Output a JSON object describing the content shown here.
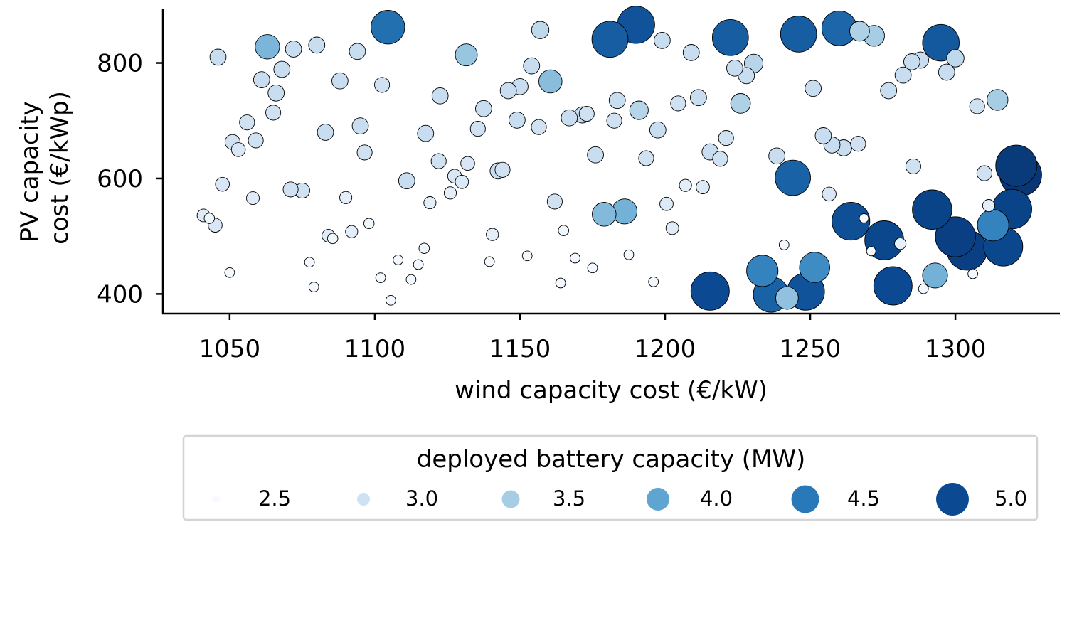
{
  "chart_data": {
    "type": "scatter",
    "title": "",
    "xlabel": "wind capacity cost (€/kW)",
    "ylabel_lines": [
      "PV capacity",
      "cost (€/kWp)"
    ],
    "xlim": [
      1027,
      1336
    ],
    "ylim": [
      366,
      893
    ],
    "xticks": [
      1050,
      1100,
      1150,
      1200,
      1250,
      1300
    ],
    "yticks": [
      400,
      600,
      800
    ],
    "grid": false,
    "colormap": "Blues",
    "size_and_color_encode": "deployed battery capacity (MW)",
    "legend": {
      "placement": "below",
      "title": "deployed battery capacity (MW)",
      "entries": [
        {
          "label": "2.5",
          "value": 2.5,
          "color": "#f7fbff"
        },
        {
          "label": "3.0",
          "value": 3.0,
          "color": "#d0e1f2"
        },
        {
          "label": "3.5",
          "value": 3.5,
          "color": "#a6cde3"
        },
        {
          "label": "4.0",
          "value": 4.0,
          "color": "#5fa5d2"
        },
        {
          "label": "4.5",
          "value": 4.5,
          "color": "#2979b9"
        },
        {
          "label": "5.0",
          "value": 5.0,
          "color": "#0b4a92"
        }
      ]
    },
    "points": [
      [
        1104.5,
        862,
        4.6
      ],
      [
        1190,
        866,
        4.9
      ],
      [
        1181,
        841,
        4.8
      ],
      [
        1222.5,
        844,
        4.8
      ],
      [
        1246,
        850,
        4.8
      ],
      [
        1260,
        860,
        4.7
      ],
      [
        1295,
        835,
        4.85
      ],
      [
        1267,
        855,
        3.4
      ],
      [
        1272,
        847,
        3.5
      ],
      [
        1063,
        828,
        3.8
      ],
      [
        1131.5,
        814,
        3.6
      ],
      [
        1157,
        857,
        3.2
      ],
      [
        1046,
        810,
        3.1
      ],
      [
        1072,
        824,
        3.1
      ],
      [
        1080,
        831,
        3.1
      ],
      [
        1094,
        820,
        3.1
      ],
      [
        1061,
        771,
        3.1
      ],
      [
        1068,
        789,
        3.1
      ],
      [
        1066,
        748,
        3.1
      ],
      [
        1088,
        769,
        3.1
      ],
      [
        1102.5,
        762,
        3.0
      ],
      [
        1154,
        795,
        3.1
      ],
      [
        1160.5,
        768,
        3.7
      ],
      [
        1199,
        839,
        3.1
      ],
      [
        1209,
        818,
        3.1
      ],
      [
        1230.5,
        799,
        3.3
      ],
      [
        1224,
        791,
        3.1
      ],
      [
        1228,
        778,
        3.1
      ],
      [
        1251,
        756,
        3.1
      ],
      [
        1285,
        802,
        3.1
      ],
      [
        1288,
        805,
        3.1
      ],
      [
        1300,
        808,
        3.2
      ],
      [
        1297,
        784,
        3.1
      ],
      [
        1282,
        779,
        3.1
      ],
      [
        1277,
        752,
        3.1
      ],
      [
        1314.5,
        736,
        3.5
      ],
      [
        1307.5,
        725,
        3.0
      ],
      [
        1122.5,
        743,
        3.1
      ],
      [
        1146,
        752,
        3.1
      ],
      [
        1150,
        759,
        3.1
      ],
      [
        1137.5,
        721,
        3.1
      ],
      [
        1149,
        701,
        3.1
      ],
      [
        1183.5,
        735,
        3.1
      ],
      [
        1191,
        718,
        3.3
      ],
      [
        1204.5,
        730,
        3.0
      ],
      [
        1211.5,
        740,
        3.1
      ],
      [
        1226,
        730,
        3.4
      ],
      [
        1065,
        714,
        3.0
      ],
      [
        1056,
        697,
        3.0
      ],
      [
        1083,
        680,
        3.1
      ],
      [
        1095,
        691,
        3.1
      ],
      [
        1117.5,
        678,
        3.1
      ],
      [
        1135.5,
        686,
        3.0
      ],
      [
        1156.5,
        689,
        3.0
      ],
      [
        1167,
        705,
        3.1
      ],
      [
        1171.5,
        710,
        3.1
      ],
      [
        1173,
        712,
        3.0
      ],
      [
        1182.5,
        700,
        3.0
      ],
      [
        1197.5,
        684,
        3.1
      ],
      [
        1221,
        670,
        3.0
      ],
      [
        1051,
        663,
        3.0
      ],
      [
        1053,
        650,
        2.9
      ],
      [
        1059,
        666,
        3.0
      ],
      [
        1096.5,
        645,
        3.0
      ],
      [
        1122,
        630,
        3.0
      ],
      [
        1132,
        626,
        2.9
      ],
      [
        1127.5,
        604,
        2.9
      ],
      [
        1130,
        594,
        2.85
      ],
      [
        1142.5,
        613,
        3.1
      ],
      [
        1144,
        615,
        3.0
      ],
      [
        1176,
        641,
        3.1
      ],
      [
        1193.5,
        635,
        3.0
      ],
      [
        1215.5,
        646,
        3.1
      ],
      [
        1219,
        634,
        3.0
      ],
      [
        1238.5,
        639,
        3.1
      ],
      [
        1254.5,
        674,
        3.1
      ],
      [
        1257.5,
        658,
        3.1
      ],
      [
        1261.5,
        653,
        3.1
      ],
      [
        1266.5,
        660,
        3.0
      ],
      [
        1285.5,
        621,
        3.0
      ],
      [
        1310,
        609,
        3.0
      ],
      [
        1047.5,
        590,
        2.9
      ],
      [
        1058,
        566,
        2.8
      ],
      [
        1071,
        581,
        3.0
      ],
      [
        1075,
        579,
        3.0
      ],
      [
        1111,
        596,
        3.1
      ],
      [
        1090,
        567,
        2.75
      ],
      [
        1119,
        558,
        2.75
      ],
      [
        1126,
        575,
        2.75
      ],
      [
        1162,
        560,
        3.0
      ],
      [
        1200.5,
        556,
        2.85
      ],
      [
        1207,
        588,
        2.75
      ],
      [
        1213,
        585,
        2.85
      ],
      [
        1244,
        601,
        4.75
      ],
      [
        1256.5,
        573,
        2.9
      ],
      [
        1041,
        536,
        2.8
      ],
      [
        1043,
        531,
        2.6
      ],
      [
        1045,
        519,
        2.9
      ],
      [
        1084,
        501,
        2.8
      ],
      [
        1085.5,
        496,
        2.6
      ],
      [
        1092,
        508,
        2.75
      ],
      [
        1098,
        522,
        2.6
      ],
      [
        1140.5,
        503,
        2.75
      ],
      [
        1165,
        510,
        2.6
      ],
      [
        1179,
        538,
        3.75
      ],
      [
        1186,
        543,
        3.85
      ],
      [
        1202.5,
        514,
        2.8
      ],
      [
        1264,
        526,
        4.95
      ],
      [
        1268.5,
        531,
        2.5
      ],
      [
        1292,
        546,
        5.1
      ],
      [
        1311.5,
        553,
        2.75
      ],
      [
        1313,
        519,
        4.4
      ],
      [
        1319.5,
        547,
        5.1
      ],
      [
        1321,
        622,
        5.25
      ],
      [
        1322.5,
        606,
        5.3
      ],
      [
        1300,
        499,
        5.15
      ],
      [
        1304,
        476,
        5.15
      ],
      [
        1316.5,
        482,
        5.05
      ],
      [
        1275.5,
        493,
        5.05
      ],
      [
        1271,
        474,
        2.5
      ],
      [
        1281,
        487,
        2.7
      ],
      [
        1241,
        485,
        2.55
      ],
      [
        1050,
        437,
        2.55
      ],
      [
        1077.5,
        455,
        2.55
      ],
      [
        1079,
        412,
        2.55
      ],
      [
        1102,
        428,
        2.55
      ],
      [
        1108,
        459,
        2.55
      ],
      [
        1112.5,
        425,
        2.55
      ],
      [
        1115,
        451,
        2.55
      ],
      [
        1117,
        479,
        2.6
      ],
      [
        1105.5,
        389,
        2.55
      ],
      [
        1139.5,
        456,
        2.55
      ],
      [
        1152.5,
        466,
        2.55
      ],
      [
        1164,
        419,
        2.55
      ],
      [
        1169,
        462,
        2.55
      ],
      [
        1175,
        445,
        2.55
      ],
      [
        1187.5,
        468,
        2.55
      ],
      [
        1196,
        421,
        2.55
      ],
      [
        1215.5,
        405,
        5.0
      ],
      [
        1233.5,
        440,
        4.4
      ],
      [
        1236.5,
        399,
        4.75
      ],
      [
        1242,
        393,
        3.65
      ],
      [
        1248.5,
        404,
        4.9
      ],
      [
        1251.5,
        446,
        4.3
      ],
      [
        1278.5,
        414,
        5.0
      ],
      [
        1289,
        409,
        2.55
      ],
      [
        1293,
        432,
        3.85
      ],
      [
        1306,
        435,
        2.55
      ]
    ]
  }
}
